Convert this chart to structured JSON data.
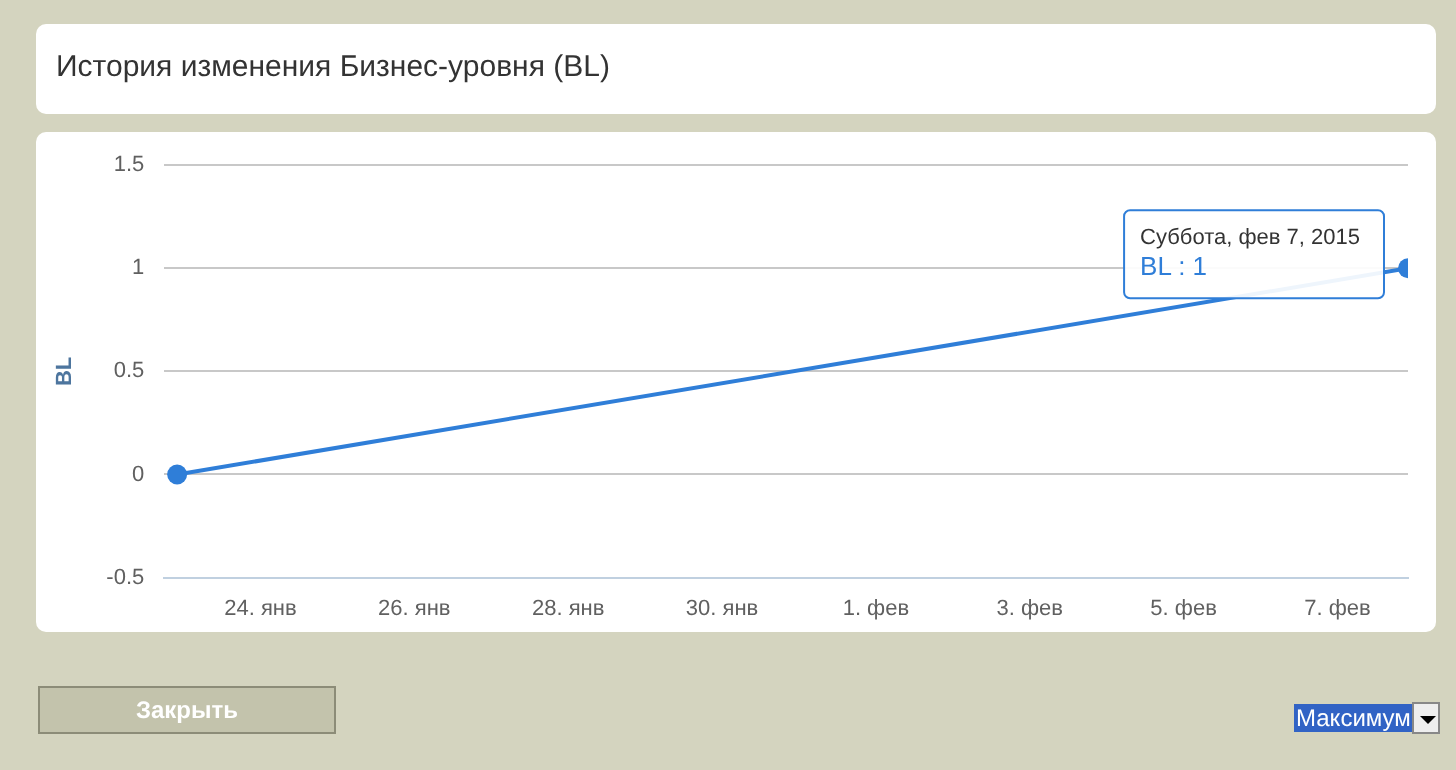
{
  "chart_data": {
    "type": "line",
    "title": "История изменения Бизнес-уровня (BL)",
    "ylabel": "BL",
    "x": [
      "2015-01-22T22:00",
      "2015-02-07T22:00"
    ],
    "series": [
      {
        "color": "#2f7ed8",
        "values": [
          0,
          1
        ]
      }
    ],
    "xlim": [
      "2015-01-22T18:00",
      "2015-02-07T22:00"
    ],
    "xticks": [
      {
        "value": "2015-01-24",
        "label": "24. янв"
      },
      {
        "value": "2015-01-26",
        "label": "26. янв"
      },
      {
        "value": "2015-01-28",
        "label": "28. янв"
      },
      {
        "value": "2015-01-30",
        "label": "30. янв"
      },
      {
        "value": "2015-02-01",
        "label": "1. фев"
      },
      {
        "value": "2015-02-03",
        "label": "3. фев"
      },
      {
        "value": "2015-02-05",
        "label": "5. фев"
      },
      {
        "value": "2015-02-07",
        "label": "7. фев"
      }
    ],
    "ylim": [
      -0.5,
      1.5
    ],
    "yticks": [
      -0.5,
      0,
      0.5,
      1,
      1.5
    ],
    "grid": "y",
    "marker": "circle",
    "line_style": "solid",
    "legend": false,
    "annotations": [
      {
        "text": "Суббота, фев 7, 2015\nBL : 1",
        "x": "2015-02-07T22:00",
        "y": 1
      },
      "Закрыть",
      "Максимум"
    ]
  }
}
